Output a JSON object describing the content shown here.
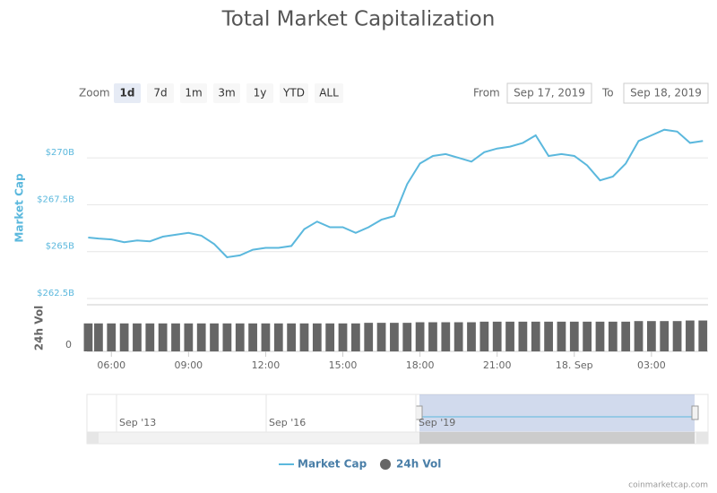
{
  "chart_data": {
    "type": "line",
    "title": "Total Market Capitalization",
    "zoom_label": "Zoom",
    "zoom_buttons": [
      "1d",
      "7d",
      "1m",
      "3m",
      "1y",
      "YTD",
      "ALL"
    ],
    "from_label": "From",
    "from_date": "Sep 17, 2019",
    "to_label": "To",
    "to_date": "Sep 18, 2019",
    "y_axis_label": "Market Cap",
    "y2_axis_label": "24h Vol",
    "x": [
      5.1,
      5.5,
      6,
      6.5,
      7,
      7.5,
      8,
      8.5,
      9,
      9.5,
      10,
      10.5,
      11,
      11.5,
      12,
      12.5,
      13,
      13.5,
      14,
      14.5,
      15,
      15.5,
      16,
      16.5,
      17,
      17.5,
      18,
      18.5,
      19,
      19.5,
      20,
      20.5,
      21,
      21.5,
      22,
      22.5,
      23,
      23.5,
      24,
      24.5,
      25,
      25.5,
      26,
      26.5,
      27,
      27.5,
      28,
      28.5,
      29
    ],
    "series": [
      {
        "name": "Market Cap",
        "color": "#5bb8dd",
        "values": [
          265.75,
          265.7,
          265.65,
          265.5,
          265.6,
          265.55,
          265.8,
          265.9,
          266.0,
          265.85,
          265.4,
          264.7,
          264.8,
          265.1,
          265.2,
          265.2,
          265.3,
          266.2,
          266.6,
          266.3,
          266.3,
          266.0,
          266.3,
          266.7,
          266.9,
          268.6,
          269.7,
          270.1,
          270.2,
          270.0,
          269.8,
          270.3,
          270.5,
          270.6,
          270.8,
          271.2,
          270.1,
          270.2,
          270.1,
          269.6,
          268.8,
          269.0,
          269.7,
          270.9,
          271.2,
          271.5,
          271.4,
          270.8,
          270.9
        ]
      },
      {
        "name": "24h Vol",
        "color": "#666666",
        "axis": "y2",
        "values": [
          48,
          48,
          48,
          48,
          48,
          48,
          48,
          48,
          48,
          48,
          48,
          48,
          48,
          48,
          48,
          48,
          48,
          48,
          48,
          48,
          48,
          48,
          49,
          49,
          49,
          49,
          50,
          50,
          50,
          50,
          50,
          51,
          51,
          51,
          51,
          51,
          51,
          51,
          51,
          51,
          51,
          51,
          51,
          52,
          52,
          52,
          52,
          53,
          53
        ]
      }
    ],
    "xlim": [
      5.05,
      29.2
    ],
    "xticks": [
      {
        "value": 6,
        "label": "06:00"
      },
      {
        "value": 9,
        "label": "09:00"
      },
      {
        "value": 12,
        "label": "12:00"
      },
      {
        "value": 15,
        "label": "15:00"
      },
      {
        "value": 18,
        "label": "18:00"
      },
      {
        "value": 21,
        "label": "21:00"
      },
      {
        "value": 24,
        "label": "18. Sep"
      },
      {
        "value": 27,
        "label": "03:00"
      }
    ],
    "ylim": [
      262.5,
      272.3
    ],
    "yticks": [
      {
        "value": 262.5,
        "label": "$262.5B"
      },
      {
        "value": 265,
        "label": "$265B"
      },
      {
        "value": 267.5,
        "label": "$267.5B"
      },
      {
        "value": 270,
        "label": "$270B"
      }
    ],
    "y2lim": [
      0,
      80
    ],
    "y2ticks": [
      0
    ],
    "grid": true,
    "navigator_labels": [
      "Sep '13",
      "Sep '16",
      "Sep '19"
    ],
    "credit": "coinmarketcap.com"
  }
}
